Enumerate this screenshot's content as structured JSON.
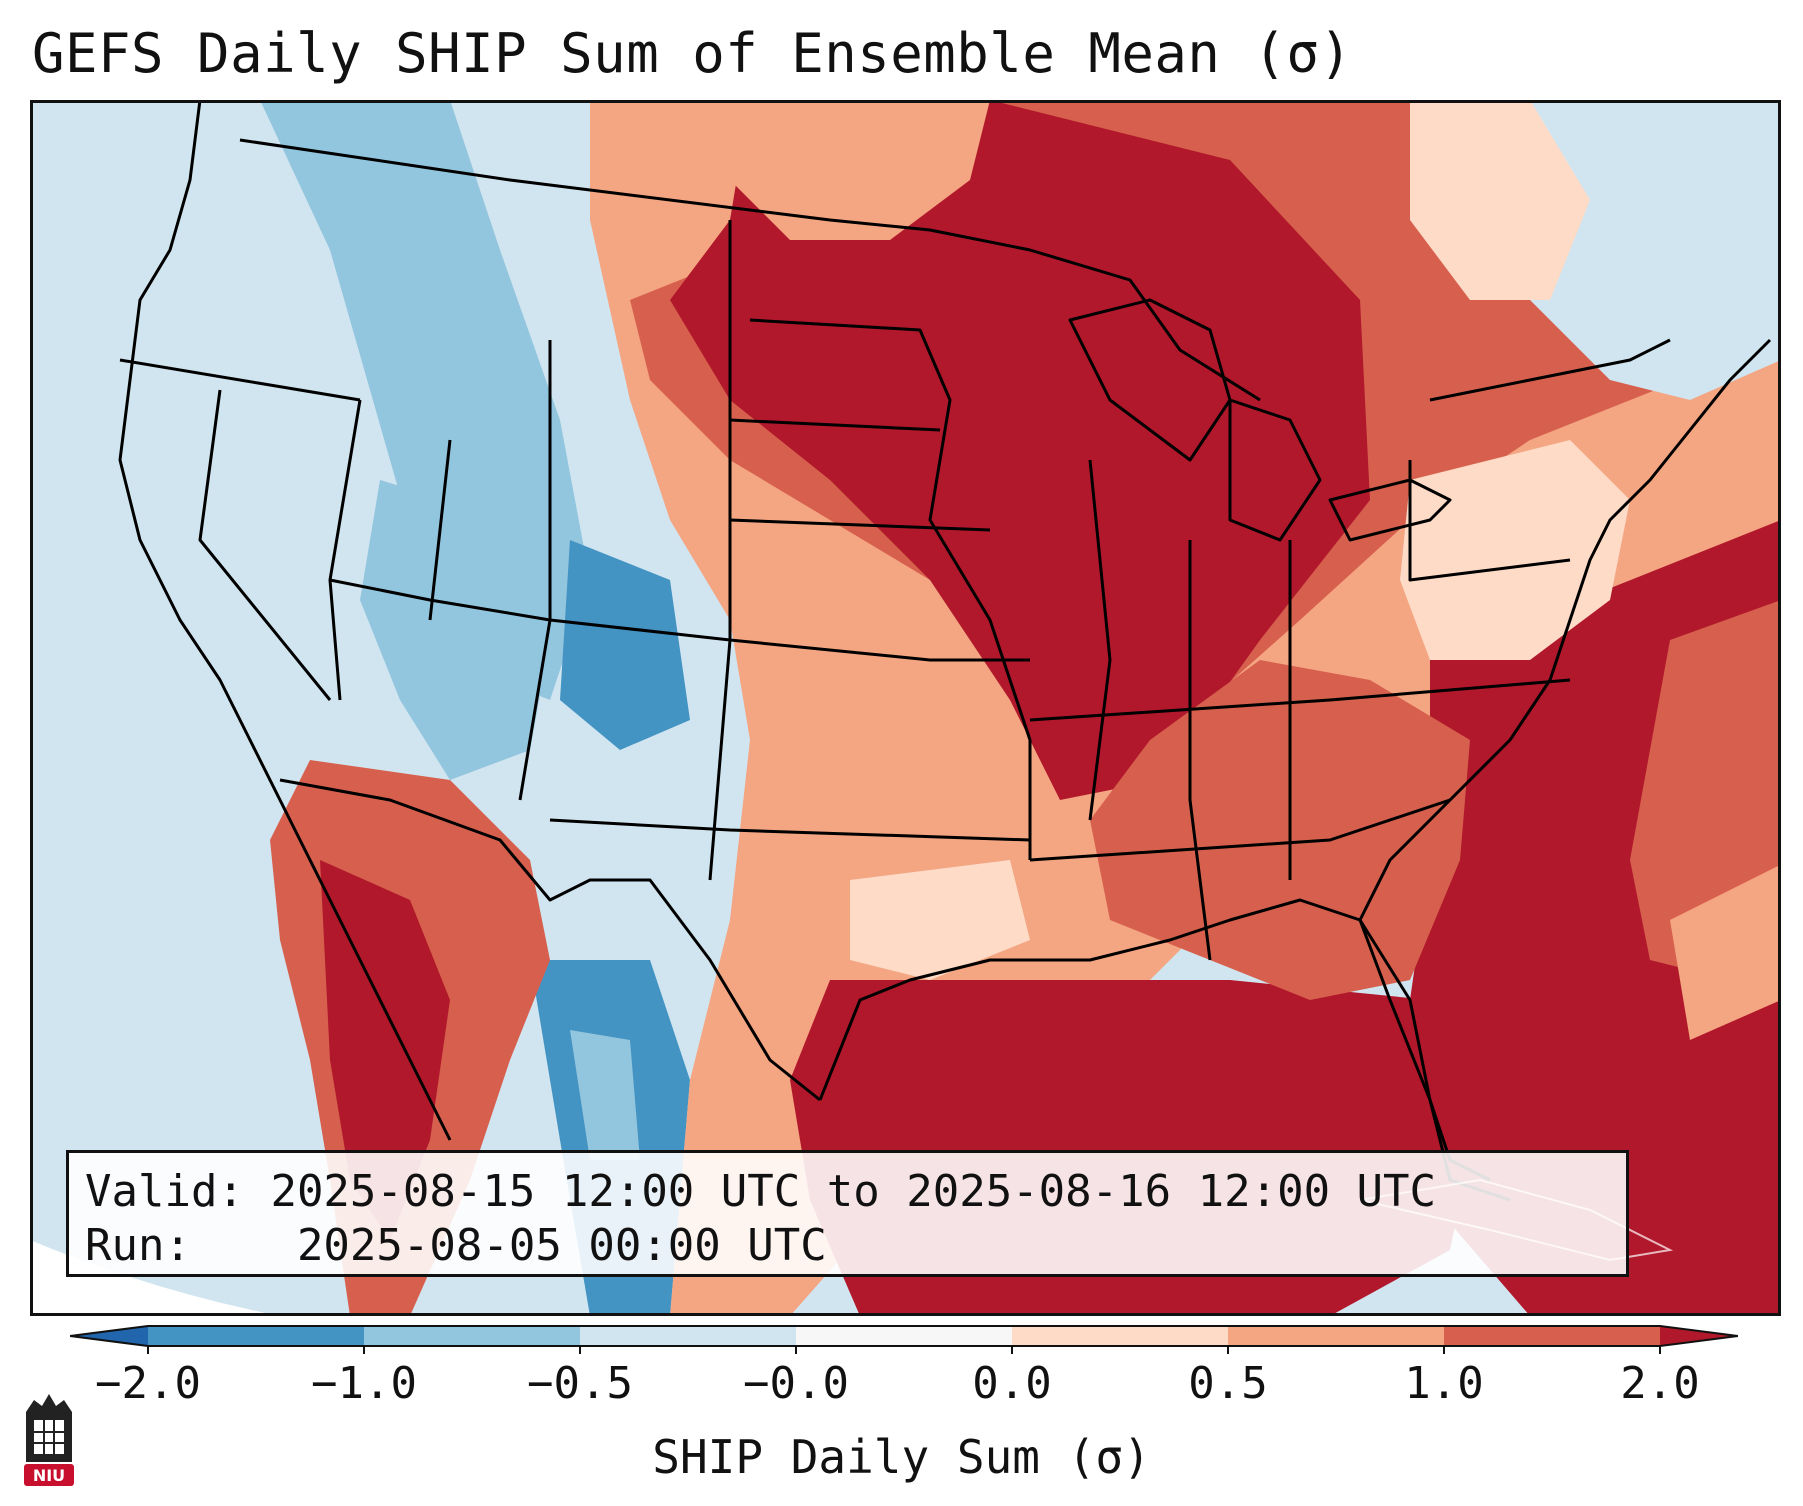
{
  "title": "GEFS Daily SHIP Sum of Ensemble Mean (σ)",
  "info": {
    "valid_label": "Valid:",
    "valid_value": "2025-08-15 12:00 UTC to 2025-08-16 12:00 UTC",
    "run_label": "Run:",
    "run_value": "2025-08-05 00:00 UTC"
  },
  "colorbar": {
    "label": "SHIP Daily Sum (σ)",
    "ticks": [
      "−2.0",
      "−1.0",
      "−0.5",
      "−0.0",
      "0.0",
      "0.5",
      "1.0",
      "2.0"
    ],
    "bins": [
      {
        "range": "< -2.0",
        "color": "#2166ac"
      },
      {
        "range": "-2.0 to -1.0",
        "color": "#4393c3"
      },
      {
        "range": "-1.0 to -0.5",
        "color": "#92c5de"
      },
      {
        "range": "-0.5 to -0.0",
        "color": "#d1e5f0"
      },
      {
        "range": "-0.0 to 0.0",
        "color": "#f7f7f7"
      },
      {
        "range": "0.0 to 0.5",
        "color": "#fddbc7"
      },
      {
        "range": "0.5 to 1.0",
        "color": "#f4a582"
      },
      {
        "range": "1.0 to 2.0",
        "color": "#d6604d"
      },
      {
        "range": "> 2.0",
        "color": "#b2182b"
      }
    ]
  },
  "logo": {
    "text": "NIU",
    "icon": "niu-tower-logo"
  }
}
